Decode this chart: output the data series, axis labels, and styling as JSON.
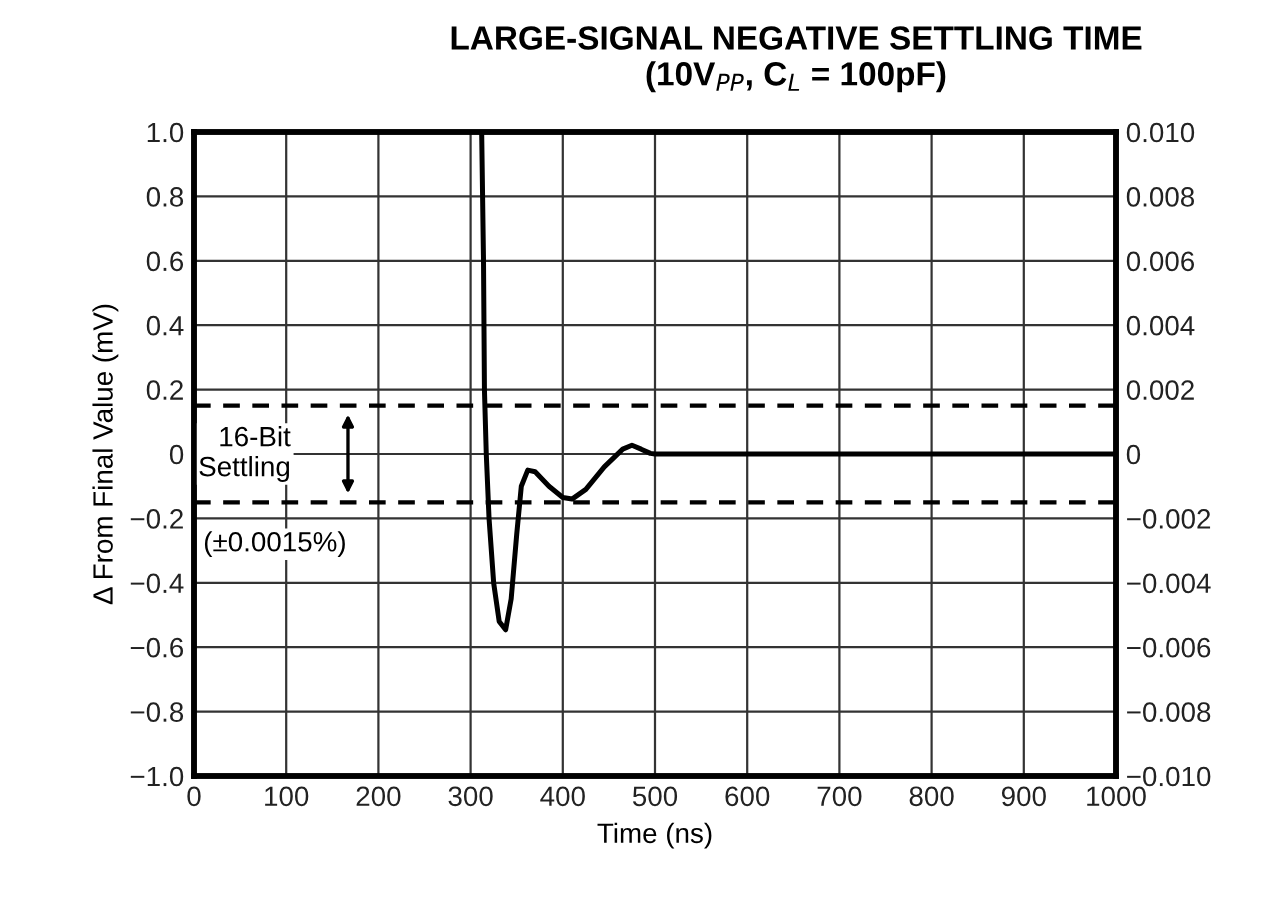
{
  "chart_data": {
    "type": "line",
    "title": "LARGE-SIGNAL NEGATIVE SETTLING TIME",
    "subtitle": "(10V$_{PP}$, C$_{L}$ = 100pF)",
    "xlabel": "Time (ns)",
    "ylabel": "Δ From Final Value (mV)",
    "series": [
      {
        "color": "#000000",
        "x": [
          312,
          314,
          315,
          317,
          320,
          325,
          331,
          338,
          344,
          350,
          355,
          362,
          370,
          385,
          400,
          410,
          425,
          445,
          465,
          475,
          485,
          495,
          500,
          1000
        ],
        "values": [
          1.0,
          0.6,
          0.2,
          0,
          -0.2,
          -0.4,
          -0.52,
          -0.546,
          -0.45,
          -0.25,
          -0.1,
          -0.05,
          -0.055,
          -0.1,
          -0.135,
          -0.14,
          -0.11,
          -0.04,
          0.015,
          0.027,
          0.015,
          0.002,
          0,
          0
        ]
      }
    ],
    "xlim": [
      0,
      1000
    ],
    "xticks": [
      0,
      100,
      200,
      300,
      400,
      500,
      600,
      700,
      800,
      900,
      1000
    ],
    "ylim": [
      -1.0,
      1.0
    ],
    "yticks": [
      {
        "value": 1.0,
        "label": "1.0"
      },
      {
        "value": 0.8,
        "label": "0.8"
      },
      {
        "value": 0.6,
        "label": "0.6"
      },
      {
        "value": 0.4,
        "label": "0.4"
      },
      {
        "value": 0.2,
        "label": "0.2"
      },
      {
        "value": 0,
        "label": "0"
      },
      {
        "value": -0.2,
        "label": "−0.2"
      },
      {
        "value": -0.4,
        "label": "−0.4"
      },
      {
        "value": -0.6,
        "label": "−0.6"
      },
      {
        "value": -0.8,
        "label": "−0.8"
      },
      {
        "value": -1.0,
        "label": "−1.0"
      }
    ],
    "y2lim": [
      -0.01,
      0.01
    ],
    "y2ticks": [
      {
        "value": 0.01,
        "label": "0.010"
      },
      {
        "value": 0.008,
        "label": "0.008"
      },
      {
        "value": 0.006,
        "label": "0.006"
      },
      {
        "value": 0.004,
        "label": "0.004"
      },
      {
        "value": 0.002,
        "label": "0.002"
      },
      {
        "value": 0,
        "label": "0"
      },
      {
        "value": -0.002,
        "label": "−0.002"
      },
      {
        "value": -0.004,
        "label": "−0.004"
      },
      {
        "value": -0.006,
        "label": "−0.006"
      },
      {
        "value": -0.008,
        "label": "−0.008"
      },
      {
        "value": -0.01,
        "label": "−0.010"
      }
    ],
    "ref_lines": [
      {
        "axis": "y",
        "value": 0.15,
        "line_style": "dashed",
        "color": "#000000"
      },
      {
        "axis": "y",
        "value": -0.15,
        "line_style": "dashed",
        "color": "#000000"
      }
    ],
    "annotations": [
      "16-Bit\nSettling",
      "(±0.0015%)"
    ],
    "grid": true,
    "marker": "none",
    "line_style": "solid"
  }
}
